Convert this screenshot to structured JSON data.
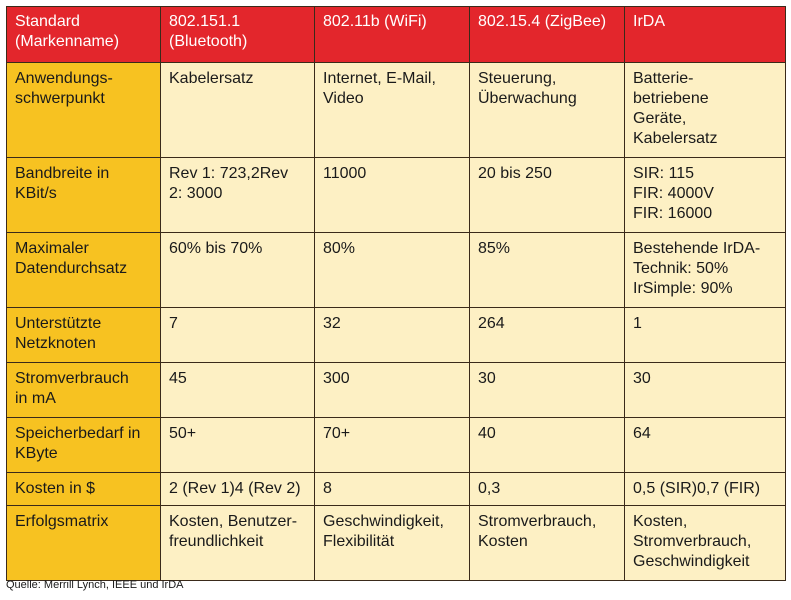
{
  "table": {
    "header": [
      "Standard\n(Markenname)",
      "802.151.1\n(Bluetooth)",
      "802.11b (WiFi)",
      "802.15.4 (ZigBee)",
      "IrDA"
    ],
    "rows": [
      {
        "label": "Anwendungs-\nschwerpunkt",
        "cells": [
          "Kabelersatz",
          "Internet, E-Mail,\nVideo",
          "Steuerung,\nÜberwachung",
          "Batterie-\nbetriebene\nGeräte,\nKabelersatz"
        ]
      },
      {
        "label": "Bandbreite in\nKBit/s",
        "cells": [
          "Rev 1:  723,2Rev\n2:  3000",
          "11000",
          "20 bis 250",
          "SIR: 115\nFIR: 4000V\nFIR: 16000"
        ]
      },
      {
        "label": "Maximaler\nDatendurchsatz",
        "cells": [
          "60% bis 70%",
          "80%",
          "85%",
          "Bestehende IrDA-\nTechnik: 50%\nIrSimple: 90%"
        ]
      },
      {
        "label": "Unterstützte\nNetzknoten",
        "cells": [
          "7",
          "32",
          "264",
          "1"
        ]
      },
      {
        "label": "Stromverbrauch\nin mA",
        "cells": [
          "45",
          "300",
          "30",
          "30"
        ]
      },
      {
        "label": "Speicherbedarf in\nKByte",
        "cells": [
          "50+",
          "70+",
          "40",
          "64"
        ]
      },
      {
        "label": "Kosten in $",
        "cells": [
          "2 (Rev 1)4 (Rev 2)",
          "8",
          "0,3",
          "0,5 (SIR)0,7 (FIR)"
        ]
      },
      {
        "label": "Erfolgsmatrix",
        "cells": [
          "Kosten, Benutzer-\nfreundlichkeit",
          "Geschwindigkeit,\nFlexibilität",
          "Stromverbrauch,\nKosten",
          "Kosten,\nStromverbrauch,\nGeschwindigkeit"
        ]
      }
    ]
  },
  "source": "Quelle: Merrill Lynch, IEEE und IrDA",
  "colors": {
    "header_bg": "#e3262c",
    "label_bg": "#f7c221",
    "cell_bg": "#fdf0c4"
  }
}
